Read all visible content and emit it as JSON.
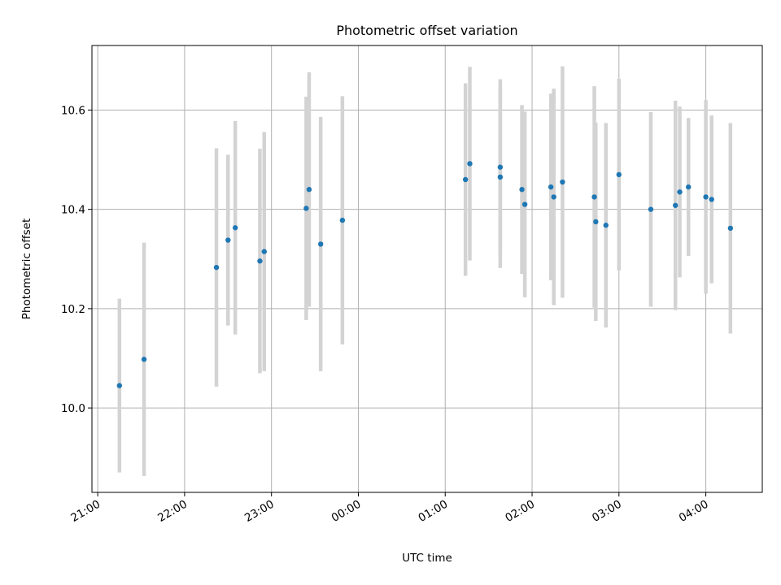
{
  "chart_data": {
    "type": "scatter",
    "title": "Photometric offset variation",
    "xlabel": "UTC time",
    "ylabel": "Photometric offset",
    "x_tick_labels": [
      "21:00",
      "22:00",
      "23:00",
      "00:00",
      "01:00",
      "02:00",
      "03:00",
      "04:00"
    ],
    "y_ticks": [
      10.0,
      10.2,
      10.4,
      10.6
    ],
    "y_tick_labels": [
      "10.0",
      "10.2",
      "10.4",
      "10.6"
    ],
    "xlim": [
      "20:56",
      "04:39"
    ],
    "ylim": [
      9.83,
      10.73
    ],
    "grid": true,
    "colors": {
      "point": "#1f77b4",
      "errorbar": "#d3d3d3",
      "grid": "#b0b0b0"
    },
    "points": [
      {
        "time": "21:15",
        "y": 10.045,
        "err": 0.175
      },
      {
        "time": "21:32",
        "y": 10.098,
        "err": 0.235
      },
      {
        "time": "22:22",
        "y": 10.283,
        "err": 0.24
      },
      {
        "time": "22:30",
        "y": 10.338,
        "err": 0.172
      },
      {
        "time": "22:35",
        "y": 10.363,
        "err": 0.215
      },
      {
        "time": "22:52",
        "y": 10.296,
        "err": 0.226
      },
      {
        "time": "22:55",
        "y": 10.315,
        "err": 0.241
      },
      {
        "time": "23:24",
        "y": 10.402,
        "err": 0.225
      },
      {
        "time": "23:26",
        "y": 10.44,
        "err": 0.236
      },
      {
        "time": "23:34",
        "y": 10.33,
        "err": 0.256
      },
      {
        "time": "23:49",
        "y": 10.378,
        "err": 0.25
      },
      {
        "time": "01:14",
        "y": 10.46,
        "err": 0.194
      },
      {
        "time": "01:17",
        "y": 10.492,
        "err": 0.195
      },
      {
        "time": "01:38",
        "y": 10.485,
        "err": 0.177
      },
      {
        "time": "01:38",
        "y": 10.465,
        "err": 0.183
      },
      {
        "time": "01:53",
        "y": 10.44,
        "err": 0.17
      },
      {
        "time": "01:55",
        "y": 10.41,
        "err": 0.187
      },
      {
        "time": "02:13",
        "y": 10.445,
        "err": 0.188
      },
      {
        "time": "02:15",
        "y": 10.425,
        "err": 0.218
      },
      {
        "time": "02:21",
        "y": 10.455,
        "err": 0.233
      },
      {
        "time": "02:43",
        "y": 10.425,
        "err": 0.223
      },
      {
        "time": "02:44",
        "y": 10.375,
        "err": 0.2
      },
      {
        "time": "02:51",
        "y": 10.368,
        "err": 0.206
      },
      {
        "time": "03:00",
        "y": 10.47,
        "err": 0.193
      },
      {
        "time": "03:22",
        "y": 10.4,
        "err": 0.196
      },
      {
        "time": "03:39",
        "y": 10.408,
        "err": 0.211
      },
      {
        "time": "03:42",
        "y": 10.435,
        "err": 0.172
      },
      {
        "time": "03:48",
        "y": 10.445,
        "err": 0.139
      },
      {
        "time": "04:00",
        "y": 10.425,
        "err": 0.195
      },
      {
        "time": "04:04",
        "y": 10.42,
        "err": 0.169
      },
      {
        "time": "04:17",
        "y": 10.362,
        "err": 0.212
      }
    ]
  }
}
